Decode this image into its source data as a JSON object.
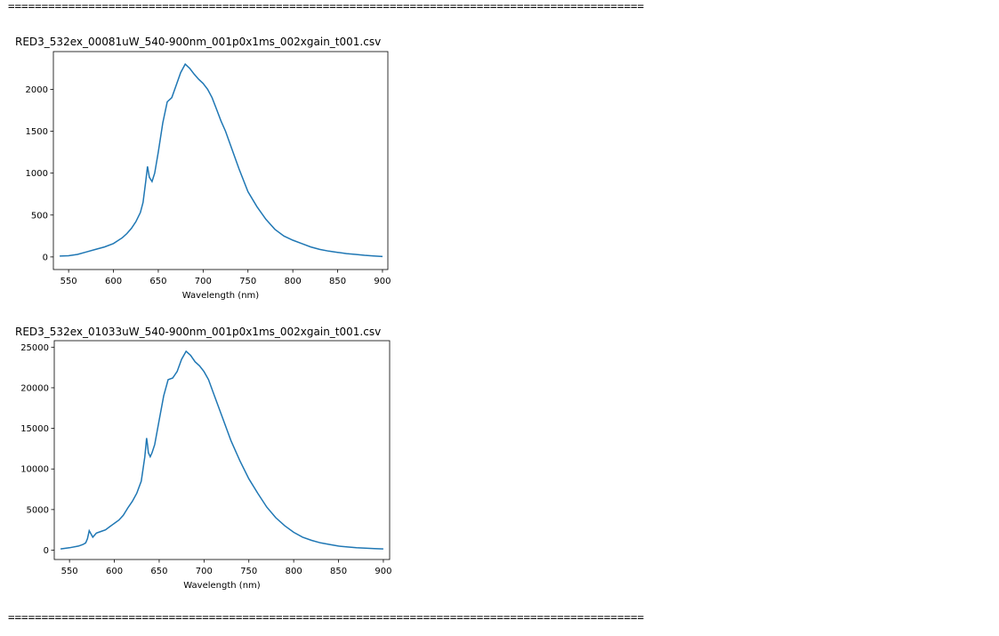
{
  "separators": {
    "top": "===============================================================================================",
    "bottom": "==============================================================================================="
  },
  "chart_data": [
    {
      "type": "line",
      "title": "RED3_532ex_00081uW_540-900nm_001p0x1ms_002xgain_t001.csv",
      "xlabel": "Wavelength (nm)",
      "ylabel": "",
      "xlim": [
        533,
        906
      ],
      "ylim": [
        -150,
        2450
      ],
      "xticks": [
        550,
        600,
        650,
        700,
        750,
        800,
        850,
        900
      ],
      "yticks": [
        0,
        500,
        1000,
        1500,
        2000
      ],
      "grid": false,
      "color": "#1f77b4",
      "series": [
        {
          "x": [
            540,
            550,
            560,
            570,
            580,
            590,
            600,
            610,
            615,
            620,
            625,
            630,
            633,
            636,
            638,
            640,
            643,
            646,
            650,
            655,
            660,
            665,
            670,
            675,
            680,
            685,
            690,
            695,
            700,
            705,
            710,
            715,
            720,
            725,
            730,
            740,
            750,
            760,
            770,
            780,
            790,
            800,
            810,
            820,
            830,
            840,
            850,
            860,
            870,
            880,
            890,
            900
          ],
          "y": [
            10,
            15,
            30,
            60,
            90,
            120,
            160,
            230,
            280,
            340,
            420,
            530,
            650,
            900,
            1080,
            950,
            900,
            1000,
            1250,
            1600,
            1850,
            1900,
            2050,
            2200,
            2300,
            2250,
            2180,
            2120,
            2070,
            2000,
            1900,
            1760,
            1620,
            1500,
            1350,
            1050,
            780,
            600,
            450,
            330,
            250,
            200,
            160,
            120,
            90,
            70,
            55,
            40,
            30,
            20,
            12,
            5
          ]
        }
      ]
    },
    {
      "type": "line",
      "title": "RED3_532ex_01033uW_540-900nm_001p0x1ms_002xgain_t001.csv",
      "xlabel": "Wavelength (nm)",
      "ylabel": "",
      "xlim": [
        533,
        907
      ],
      "ylim": [
        -1150,
        25800
      ],
      "xticks": [
        550,
        600,
        650,
        700,
        750,
        800,
        850,
        900
      ],
      "yticks": [
        0,
        5000,
        10000,
        15000,
        20000,
        25000
      ],
      "grid": false,
      "color": "#1f77b4",
      "series": [
        {
          "x": [
            540,
            550,
            560,
            565,
            568,
            570,
            572,
            574,
            576,
            580,
            585,
            590,
            595,
            600,
            605,
            610,
            615,
            620,
            625,
            630,
            634,
            636,
            637,
            638,
            640,
            642,
            645,
            650,
            655,
            660,
            665,
            670,
            675,
            680,
            685,
            690,
            695,
            700,
            705,
            710,
            720,
            730,
            740,
            750,
            760,
            770,
            780,
            790,
            800,
            810,
            820,
            830,
            840,
            850,
            860,
            870,
            880,
            890,
            900
          ],
          "y": [
            150,
            300,
            500,
            700,
            900,
            1400,
            2400,
            2000,
            1600,
            2100,
            2300,
            2500,
            2900,
            3300,
            3700,
            4300,
            5200,
            6000,
            7000,
            8500,
            11500,
            13800,
            13000,
            12000,
            11500,
            12000,
            13000,
            16000,
            19000,
            21000,
            21200,
            22000,
            23500,
            24500,
            24000,
            23200,
            22700,
            22000,
            21000,
            19500,
            16500,
            13500,
            11000,
            8800,
            7000,
            5300,
            4000,
            3000,
            2200,
            1600,
            1200,
            900,
            700,
            500,
            400,
            300,
            250,
            200,
            150
          ]
        }
      ]
    }
  ]
}
